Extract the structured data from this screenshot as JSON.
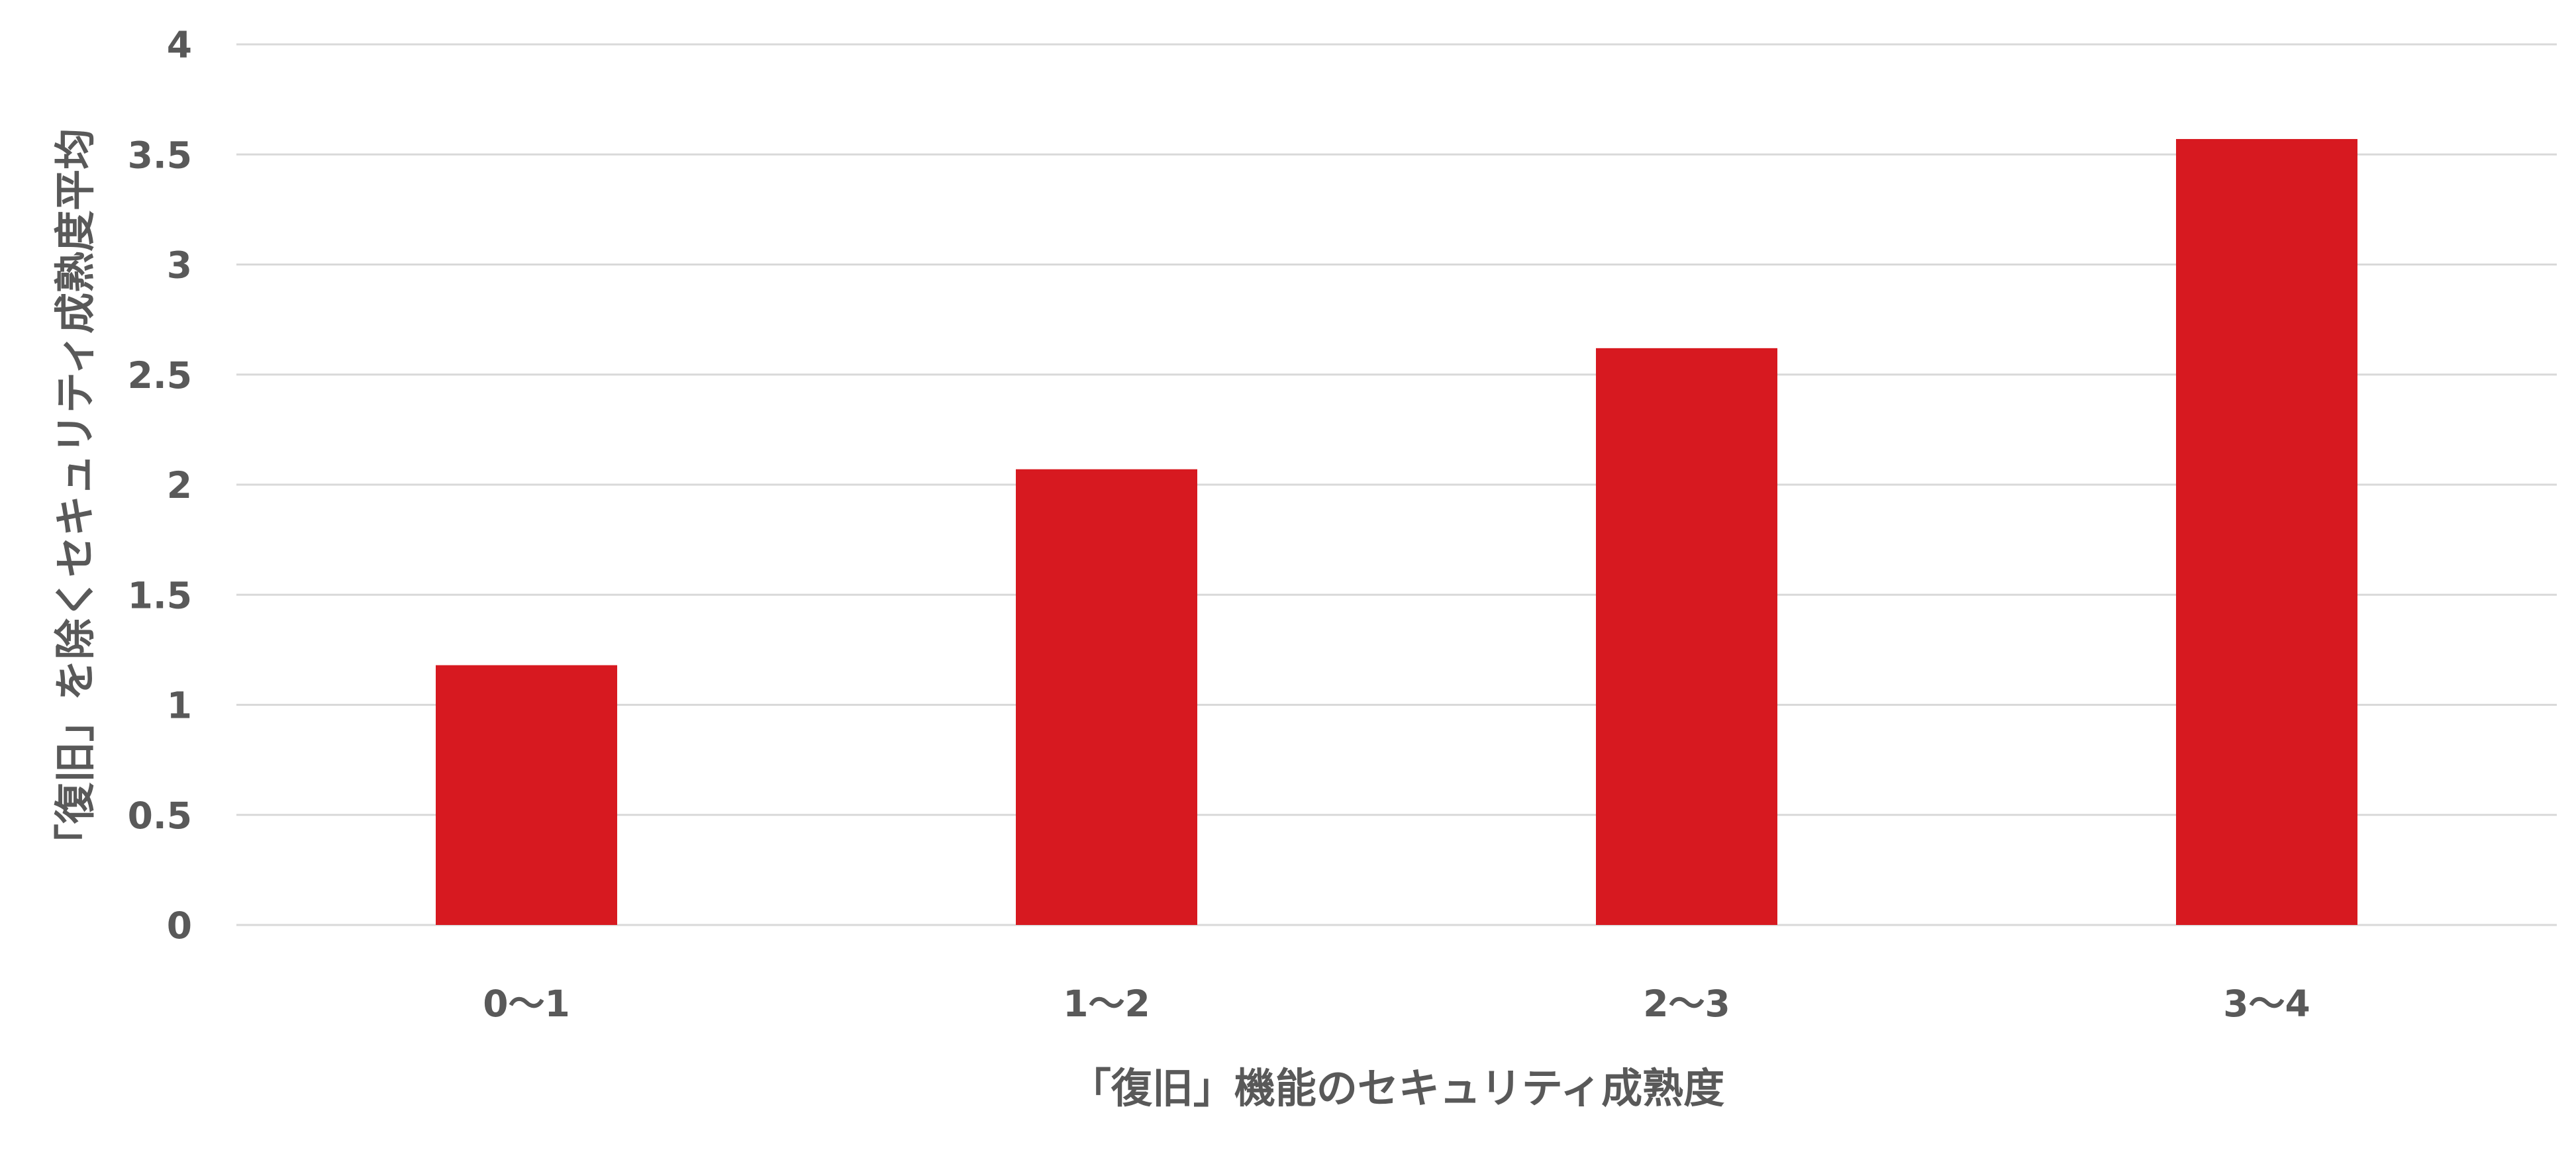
{
  "chart_data": {
    "type": "bar",
    "title": "",
    "xlabel": "「復旧」機能のセキュリティ成熟度",
    "ylabel": "「復旧」を除くセキュリティ成熟度平均",
    "categories": [
      "0〜1",
      "1〜2",
      "2〜3",
      "3〜4"
    ],
    "values": [
      1.18,
      2.07,
      2.62,
      3.57
    ],
    "ylim": [
      0,
      4
    ],
    "yticks": [
      "0",
      "0.5",
      "1",
      "1.5",
      "2",
      "2.5",
      "3",
      "3.5",
      "4"
    ],
    "grid": true,
    "legend": "none",
    "colors": {
      "bar": "#d71920",
      "grid": "#d9d9d9",
      "text": "#595959"
    }
  }
}
